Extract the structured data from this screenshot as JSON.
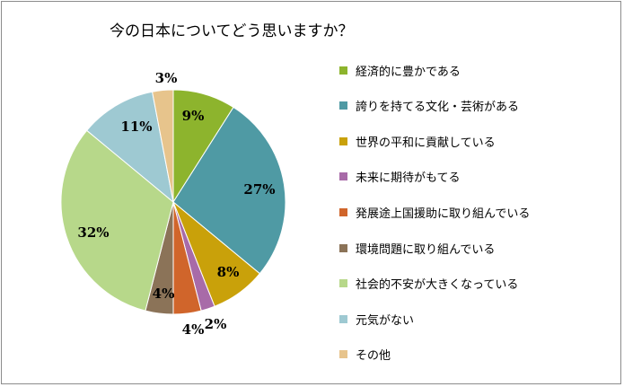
{
  "chart_data": {
    "type": "pie",
    "title": "今の日本についてどう思いますか？",
    "legend_position": "right",
    "slices": [
      {
        "label": "経済的に豊かである",
        "value": 9,
        "value_label": "9%",
        "color": "#8db42d"
      },
      {
        "label": "誇りを持てる文化・芸術がある",
        "value": 27,
        "value_label": "27%",
        "color": "#4f9aa4"
      },
      {
        "label": "世界の平和に貢献している",
        "value": 8,
        "value_label": "8%",
        "color": "#c9a10a"
      },
      {
        "label": "未来に期待がもてる",
        "value": 2,
        "value_label": "2%",
        "color": "#a86ba8"
      },
      {
        "label": "発展途上国援助に取り組んでいる",
        "value": 4,
        "value_label": "4%",
        "color": "#d0652b"
      },
      {
        "label": "環境問題に取り組んでいる",
        "value": 4,
        "value_label": "4%",
        "color": "#8b7358"
      },
      {
        "label": "社会的不安が大きくなっている",
        "value": 32,
        "value_label": "32%",
        "color": "#b7d88a"
      },
      {
        "label": "元気がない",
        "value": 11,
        "value_label": "11%",
        "color": "#9ec9d2"
      },
      {
        "label": "その他",
        "value": 3,
        "value_label": "3%",
        "color": "#e7c48c"
      }
    ]
  }
}
